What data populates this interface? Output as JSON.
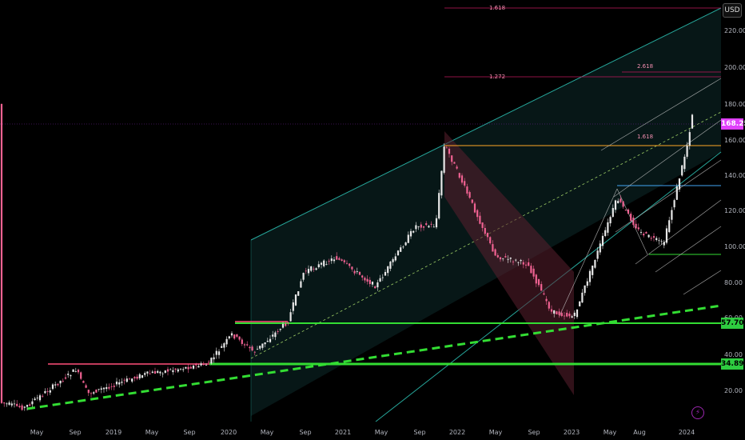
{
  "toolbar": {
    "currency": "USD"
  },
  "price_axis": {
    "ticks": [
      "220.00",
      "200.00",
      "180.00",
      "160.00",
      "140.00",
      "120.00",
      "100.00",
      "80.00",
      "60.00",
      "40.00",
      "20.00"
    ],
    "last_price": "168.25",
    "support_1": "57.70",
    "support_2": "34.89"
  },
  "time_axis": {
    "ticks": [
      "May",
      "Sep",
      "2019",
      "May",
      "Sep",
      "2020",
      "May",
      "Sep",
      "2021",
      "May",
      "Sep",
      "2022",
      "May",
      "Sep",
      "2023",
      "May",
      "Aug",
      "2024"
    ]
  },
  "fib_labels": [
    "1.618",
    "1.272",
    "2.618",
    "1.618"
  ],
  "colors": {
    "up": "#e8e8e8",
    "down": "#f06292",
    "channel": "#26a69a",
    "support": "#33dd33",
    "resistance": "#ff4f7b",
    "accent": "#e040fb"
  },
  "icons": {
    "logo": "tradingview-logo-icon"
  }
}
